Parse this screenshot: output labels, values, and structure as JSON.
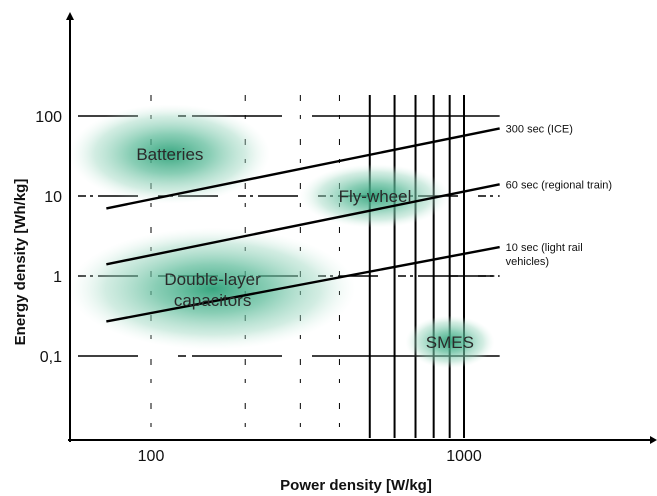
{
  "chart_data": {
    "type": "scatter",
    "xlabel": "Power density [W/kg]",
    "ylabel": "Energy density [Wh/kg]",
    "x_scale": "log",
    "y_scale": "log",
    "xlim": [
      50,
      4000
    ],
    "ylim": [
      0.01,
      1000
    ],
    "x_ticks": [
      {
        "value": 100,
        "label": "100"
      },
      {
        "value": 1000,
        "label": "1000"
      }
    ],
    "y_ticks": [
      {
        "value": 100,
        "label": "100"
      },
      {
        "value": 10,
        "label": "10"
      },
      {
        "value": 1,
        "label": "1"
      },
      {
        "value": 0.1,
        "label": "0,1"
      }
    ],
    "regions": [
      {
        "label": "Batteries",
        "x_range": [
          55,
          240
        ],
        "y_range": [
          8,
          140
        ]
      },
      {
        "label": "Fly-wheel",
        "x_range": [
          300,
          900
        ],
        "y_range": [
          4,
          25
        ]
      },
      {
        "label": "Double-layer capacitors",
        "label_lines": [
          "Double-layer",
          "capacitors"
        ],
        "x_range": [
          55,
          450
        ],
        "y_range": [
          0.12,
          4
        ]
      },
      {
        "label": "SMES",
        "x_range": [
          650,
          1250
        ],
        "y_range": [
          0.07,
          0.32
        ]
      }
    ],
    "reference_lines": [
      {
        "name": "300 sec (ICE)",
        "label_lines": [
          "300 sec (ICE)"
        ],
        "x": [
          72,
          1300
        ],
        "y": [
          7,
          70
        ]
      },
      {
        "name": "60 sec (regional train)",
        "label_lines": [
          "60 sec (regional train)"
        ],
        "x": [
          72,
          1300
        ],
        "y": [
          1.4,
          14
        ]
      },
      {
        "name": "10 sec (light rail vehicles)",
        "label_lines": [
          "10 sec (light rail",
          "vehicles)"
        ],
        "x": [
          72,
          1300
        ],
        "y": [
          0.27,
          2.3
        ]
      }
    ],
    "grid_x": [
      100,
      200,
      300,
      400,
      500,
      600,
      700,
      800,
      900,
      1000
    ],
    "grid_y": [
      100,
      10,
      1,
      0.1
    ],
    "legend": "none",
    "colors": {
      "region_fill": "#2fa27a",
      "line": "#000000",
      "grid": "#000000"
    }
  }
}
